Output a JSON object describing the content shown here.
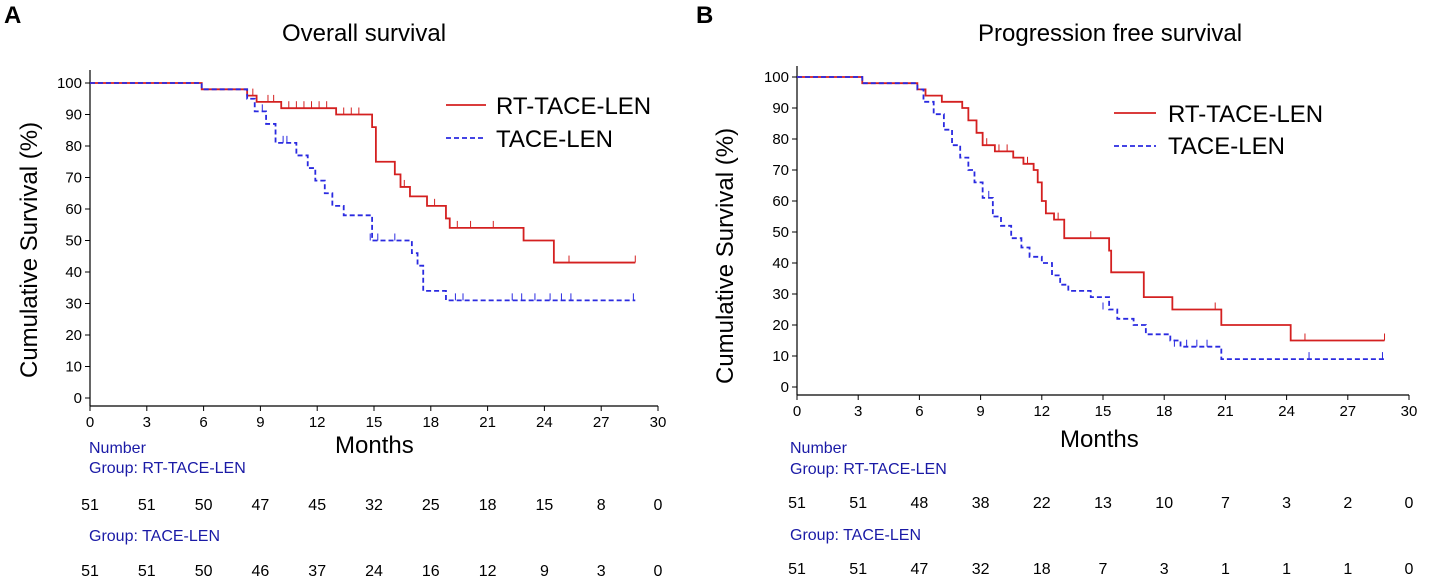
{
  "panels": [
    {
      "letter": "A",
      "title": "Overall survival",
      "ylabel": "Cumulative Survival (%)",
      "xlabel": "Months",
      "number_label": "Number",
      "group1_label": "Group:  RT-TACE-LEN",
      "group2_label": "Group:  TACE-LEN",
      "risk_rt": [
        "51",
        "51",
        "50",
        "47",
        "45",
        "32",
        "25",
        "18",
        "15",
        "8",
        "0"
      ],
      "risk_tace": [
        "51",
        "51",
        "50",
        "46",
        "37",
        "24",
        "16",
        "12",
        "9",
        "3",
        "0"
      ]
    },
    {
      "letter": "B",
      "title": "Progression free survival",
      "ylabel": "Cumulative Survival (%)",
      "xlabel": "Months",
      "number_label": "Number",
      "group1_label": "Group:  RT-TACE-LEN",
      "group2_label": "Group:  TACE-LEN",
      "risk_rt": [
        "51",
        "51",
        "48",
        "38",
        "22",
        "13",
        "10",
        "7",
        "3",
        "2",
        "0"
      ],
      "risk_tace": [
        "51",
        "51",
        "47",
        "32",
        "18",
        "7",
        "3",
        "1",
        "1",
        "1",
        "0"
      ]
    }
  ],
  "colors": {
    "rt": "#d42020",
    "tace": "#2a2ae0",
    "risk_label": "#1a1aa6"
  },
  "chart_data": [
    {
      "type": "line",
      "title": "Overall survival",
      "xlabel": "Months",
      "ylabel": "Cumulative Survival (%)",
      "xlim": [
        0,
        30
      ],
      "ylim": [
        0,
        100
      ],
      "xticks": [
        0,
        3,
        6,
        9,
        12,
        15,
        18,
        21,
        24,
        27,
        30
      ],
      "yticks": [
        0,
        10,
        20,
        30,
        40,
        50,
        60,
        70,
        80,
        90,
        100
      ],
      "legend": "top-right",
      "series": [
        {
          "name": "RT-TACE-LEN",
          "style": "solid",
          "color": "#d42020",
          "steps": [
            [
              0,
              100
            ],
            [
              5.9,
              98
            ],
            [
              8.3,
              96
            ],
            [
              8.8,
              94
            ],
            [
              10.1,
              92
            ],
            [
              13,
              90
            ],
            [
              14.9,
              86
            ],
            [
              15.1,
              75
            ],
            [
              16.1,
              71
            ],
            [
              16.4,
              67
            ],
            [
              16.9,
              64
            ],
            [
              17.8,
              61
            ],
            [
              18.8,
              57
            ],
            [
              19,
              54
            ],
            [
              22.9,
              50
            ],
            [
              24.5,
              43
            ],
            [
              28.8,
              43
            ]
          ],
          "censors": [
            [
              8.6,
              96
            ],
            [
              9.4,
              94
            ],
            [
              9.7,
              94
            ],
            [
              10.5,
              92
            ],
            [
              10.9,
              92
            ],
            [
              11.3,
              92
            ],
            [
              11.7,
              92
            ],
            [
              12.1,
              92
            ],
            [
              12.5,
              92
            ],
            [
              13.4,
              90
            ],
            [
              13.8,
              90
            ],
            [
              14.2,
              90
            ],
            [
              16.6,
              67
            ],
            [
              18.2,
              61
            ],
            [
              19.4,
              54
            ],
            [
              20.1,
              54
            ],
            [
              21.3,
              54
            ],
            [
              25.3,
              43
            ],
            [
              28.8,
              43
            ]
          ]
        },
        {
          "name": "TACE-LEN",
          "style": "dashed",
          "color": "#2a2ae0",
          "steps": [
            [
              0,
              100
            ],
            [
              5.9,
              98
            ],
            [
              8.3,
              95
            ],
            [
              8.7,
              91
            ],
            [
              9.3,
              87
            ],
            [
              9.8,
              81
            ],
            [
              10.9,
              77
            ],
            [
              11.5,
              73
            ],
            [
              11.9,
              69
            ],
            [
              12.4,
              65
            ],
            [
              12.8,
              61
            ],
            [
              13.4,
              58
            ],
            [
              14.9,
              50
            ],
            [
              17,
              46
            ],
            [
              17.3,
              42
            ],
            [
              17.6,
              34
            ],
            [
              18.8,
              31
            ],
            [
              28.8,
              31
            ]
          ],
          "censors": [
            [
              9.1,
              91
            ],
            [
              10.2,
              81
            ],
            [
              10.4,
              81
            ],
            [
              14.8,
              50
            ],
            [
              15.2,
              50
            ],
            [
              16.1,
              50
            ],
            [
              19.3,
              31
            ],
            [
              19.7,
              31
            ],
            [
              22.3,
              31
            ],
            [
              22.8,
              31
            ],
            [
              23.5,
              31
            ],
            [
              24.3,
              31
            ],
            [
              24.9,
              31
            ],
            [
              25.4,
              31
            ],
            [
              28.7,
              31
            ]
          ]
        }
      ],
      "at_risk": {
        "times": [
          0,
          3,
          6,
          9,
          12,
          15,
          18,
          21,
          24,
          27,
          30
        ],
        "RT-TACE-LEN": [
          51,
          51,
          50,
          47,
          45,
          32,
          25,
          18,
          15,
          8,
          0
        ],
        "TACE-LEN": [
          51,
          51,
          50,
          46,
          37,
          24,
          16,
          12,
          9,
          3,
          0
        ]
      }
    },
    {
      "type": "line",
      "title": "Progression free survival",
      "xlabel": "Months",
      "ylabel": "Cumulative Survival (%)",
      "xlim": [
        0,
        30
      ],
      "ylim": [
        0,
        100
      ],
      "xticks": [
        0,
        3,
        6,
        9,
        12,
        15,
        18,
        21,
        24,
        27,
        30
      ],
      "yticks": [
        0,
        10,
        20,
        30,
        40,
        50,
        60,
        70,
        80,
        90,
        100
      ],
      "legend": "top-right",
      "series": [
        {
          "name": "RT-TACE-LEN",
          "style": "solid",
          "color": "#d42020",
          "steps": [
            [
              0,
              100
            ],
            [
              3.2,
              98
            ],
            [
              5.9,
              96
            ],
            [
              6.3,
              94
            ],
            [
              7.1,
              92
            ],
            [
              8.1,
              90
            ],
            [
              8.4,
              86
            ],
            [
              8.8,
              82
            ],
            [
              9.1,
              78
            ],
            [
              9.7,
              76
            ],
            [
              10.6,
              74
            ],
            [
              11.1,
              72
            ],
            [
              11.6,
              70
            ],
            [
              11.8,
              66
            ],
            [
              12,
              60
            ],
            [
              12.2,
              56
            ],
            [
              12.6,
              54
            ],
            [
              13.1,
              48
            ],
            [
              15.3,
              44
            ],
            [
              15.4,
              37
            ],
            [
              17,
              29
            ],
            [
              18.4,
              25
            ],
            [
              20.8,
              20
            ],
            [
              24.2,
              15
            ],
            [
              28.8,
              15
            ]
          ],
          "censors": [
            [
              9.3,
              78
            ],
            [
              9.9,
              76
            ],
            [
              10.3,
              76
            ],
            [
              11.3,
              72
            ],
            [
              12.8,
              54
            ],
            [
              14.4,
              48
            ],
            [
              20.5,
              25
            ],
            [
              24.9,
              15
            ],
            [
              28.8,
              15
            ]
          ]
        },
        {
          "name": "TACE-LEN",
          "style": "dashed",
          "color": "#2a2ae0",
          "steps": [
            [
              0,
              100
            ],
            [
              3.2,
              98
            ],
            [
              5.9,
              96
            ],
            [
              6.2,
              92
            ],
            [
              6.7,
              88
            ],
            [
              7.2,
              83
            ],
            [
              7.6,
              78
            ],
            [
              8,
              74
            ],
            [
              8.4,
              70
            ],
            [
              8.7,
              66
            ],
            [
              9.1,
              61
            ],
            [
              9.6,
              55
            ],
            [
              10,
              52
            ],
            [
              10.5,
              48
            ],
            [
              11,
              45
            ],
            [
              11.4,
              42
            ],
            [
              12,
              40
            ],
            [
              12.5,
              36
            ],
            [
              12.9,
              33
            ],
            [
              13.3,
              31
            ],
            [
              14.4,
              29
            ],
            [
              15.3,
              25
            ],
            [
              15.7,
              22
            ],
            [
              16.5,
              20
            ],
            [
              17.1,
              17
            ],
            [
              18.3,
              15
            ],
            [
              18.8,
              13
            ],
            [
              20.8,
              9
            ],
            [
              28.8,
              9
            ]
          ],
          "censors": [
            [
              9.4,
              61
            ],
            [
              15,
              25
            ],
            [
              18.5,
              13
            ],
            [
              19.1,
              13
            ],
            [
              19.6,
              13
            ],
            [
              20.1,
              13
            ],
            [
              25.1,
              9
            ],
            [
              28.7,
              9
            ]
          ]
        }
      ],
      "at_risk": {
        "times": [
          0,
          3,
          6,
          9,
          12,
          15,
          18,
          21,
          24,
          27,
          30
        ],
        "RT-TACE-LEN": [
          51,
          51,
          48,
          38,
          22,
          13,
          10,
          7,
          3,
          2,
          0
        ],
        "TACE-LEN": [
          51,
          51,
          47,
          32,
          18,
          7,
          3,
          1,
          1,
          1,
          0
        ]
      }
    }
  ]
}
